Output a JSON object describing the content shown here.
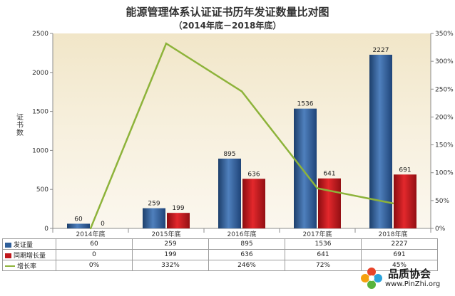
{
  "title": "能源管理体系认证证书历年发证数量比对图",
  "subtitle": "（2014年底－2018年底）",
  "watermark": {
    "name": "品质协会",
    "url": "www.PinZhi.org"
  },
  "chart_data": {
    "type": "bar",
    "categories": [
      "2014年底",
      "2015年底",
      "2016年底",
      "2017年底",
      "2018年底"
    ],
    "ylabel": "证书数",
    "ylim": [
      0,
      2500
    ],
    "yticks": [
      "0",
      "500",
      "1000",
      "1500",
      "2000",
      "2500"
    ],
    "y2lim": [
      0,
      3.5
    ],
    "y2ticks": [
      "0%",
      "50%",
      "100%",
      "150%",
      "200%",
      "250%",
      "300%",
      "350%"
    ],
    "grid": false,
    "series": [
      {
        "name": "发证量",
        "kind": "bar",
        "axis": "left",
        "color": "#2f5f9a",
        "values": [
          60,
          259,
          895,
          1536,
          2227
        ],
        "labels": [
          "60",
          "259",
          "895",
          "1536",
          "2227"
        ]
      },
      {
        "name": "同期增长量",
        "kind": "bar",
        "axis": "left",
        "color": "#c0161b",
        "values": [
          0,
          199,
          636,
          641,
          691
        ],
        "labels": [
          "0",
          "199",
          "636",
          "641",
          "691"
        ]
      },
      {
        "name": "增长率",
        "kind": "line",
        "axis": "right",
        "color": "#8db33a",
        "values": [
          0,
          3.32,
          2.46,
          0.72,
          0.45
        ],
        "labels": [
          "0%",
          "332%",
          "246%",
          "72%",
          "45%"
        ]
      }
    ]
  }
}
